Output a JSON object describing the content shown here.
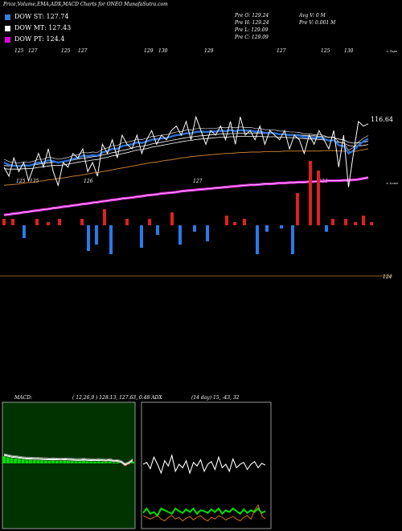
{
  "header": {
    "title": "Price,Volume,EMA,ADX,MACD Charts for ONEO MunafaSutra.com"
  },
  "legend": [
    {
      "label": "DOW ST: 127.74",
      "color": "#3a7bdc"
    },
    {
      "label": "DOW MT: 127.43",
      "color": "#ffffff"
    },
    {
      "label": "DOW PT: 124.4",
      "color": "#e000e0"
    }
  ],
  "info": {
    "open": "Pre  O: 129.24",
    "high": "Pre  H: 129.24",
    "low": "Pre  L: 129.09",
    "close": "Pre  C: 129.09",
    "avg_vol": "Avg V: 0  M",
    "prev_vol": "Pre  V: 0.001 M"
  },
  "labels": {
    "price_right": "116.64",
    "top_right": "< Tops",
    "low_right": "< Lows",
    "volume_right": "124",
    "macd": "MACD:",
    "macd_vals": "( 12,26,9 ) 128.13,  127.63,  0.48 ADX",
    "adx_vals": "(14  day) 15,  -43,  32"
  },
  "top_markers": [
    "125",
    "127",
    "125",
    "127",
    "129",
    "130",
    "129",
    "127",
    "125",
    "130"
  ],
  "low_markers": [
    "125",
    "125",
    "126",
    "127",
    "124"
  ],
  "chart_data": {
    "type": "line",
    "title": "Price,Volume,EMA,ADX,MACD Charts for ONEO",
    "ylim": [
      110,
      140
    ],
    "series": [
      {
        "name": "DOW ST",
        "color": "#3a7bdc"
      },
      {
        "name": "DOW MT",
        "color": "#ffffff"
      },
      {
        "name": "DOW PT",
        "color": "#e000e0"
      }
    ],
    "price": [
      121,
      119,
      123,
      120,
      122,
      118,
      121,
      124,
      121,
      125,
      120,
      117,
      122,
      121,
      124,
      123,
      125,
      120,
      122,
      119,
      126,
      124,
      127,
      123,
      128,
      126,
      125,
      128,
      124,
      127,
      129,
      126,
      128,
      127,
      129,
      130,
      128,
      131,
      127,
      132,
      129,
      126,
      129,
      128,
      130,
      127,
      131,
      126,
      132,
      128,
      129,
      127,
      130,
      126,
      129,
      128,
      127,
      129,
      125,
      128,
      127,
      124,
      128,
      126,
      129,
      127,
      125,
      129,
      121,
      128,
      116.6,
      124,
      131,
      130,
      130.5
    ],
    "ema_short": [
      122,
      121.5,
      121.3,
      121.2,
      121.4,
      121.3,
      121.6,
      122,
      122,
      122.5,
      122.3,
      122,
      122.2,
      122.4,
      122.8,
      123,
      123.5,
      123.4,
      123.6,
      123.5,
      124.2,
      124.5,
      125,
      125,
      125.6,
      125.8,
      126,
      126.4,
      126.3,
      126.6,
      127,
      127.1,
      127.3,
      127.4,
      127.7,
      128,
      128.1,
      128.4,
      128.4,
      128.7,
      128.8,
      128.7,
      128.8,
      128.8,
      129,
      128.9,
      129.1,
      128.9,
      129.1,
      129,
      129,
      128.8,
      128.8,
      128.5,
      128.5,
      128.4,
      128.2,
      128.2,
      128,
      128,
      127.9,
      127.6,
      127.6,
      127.4,
      127.5,
      127.2,
      126.8,
      126.9,
      125.8,
      125.6,
      124,
      124.6,
      125.8,
      126.6,
      127.2
    ],
    "ema_mid": [
      121,
      120.9,
      120.9,
      120.9,
      121,
      121,
      121.1,
      121.3,
      121.4,
      121.6,
      121.7,
      121.7,
      121.8,
      122,
      122.2,
      122.4,
      122.6,
      122.7,
      122.9,
      123,
      123.3,
      123.5,
      123.8,
      124,
      124.3,
      124.5,
      124.8,
      125.1,
      125.2,
      125.4,
      125.7,
      125.9,
      126.1,
      126.3,
      126.5,
      126.7,
      126.9,
      127.1,
      127.2,
      127.4,
      127.5,
      127.6,
      127.7,
      127.8,
      127.9,
      127.9,
      128,
      128,
      128.1,
      128.1,
      128.1,
      128.1,
      128.1,
      128,
      128,
      128,
      127.9,
      127.9,
      127.8,
      127.8,
      127.7,
      127.6,
      127.5,
      127.5,
      127.4,
      127.3,
      127.2,
      127.1,
      126.8,
      126.6,
      126.1,
      125.9,
      126,
      126.1,
      126.3
    ],
    "ema_long": [
      117,
      117.1,
      117.2,
      117.3,
      117.5,
      117.6,
      117.7,
      117.9,
      118,
      118.2,
      118.3,
      118.5,
      118.6,
      118.8,
      119,
      119.1,
      119.3,
      119.5,
      119.7,
      119.8,
      120,
      120.2,
      120.4,
      120.6,
      120.8,
      121,
      121.2,
      121.4,
      121.6,
      121.8,
      122,
      122.1,
      122.3,
      122.5,
      122.6,
      122.8,
      123,
      123.1,
      123.3,
      123.4,
      123.5,
      123.6,
      123.7,
      123.8,
      123.9,
      124,
      124,
      124.1,
      124.2,
      124.2,
      124.3,
      124.3,
      124.3,
      124.4,
      124.4,
      124.4,
      124.4,
      124.5,
      124.5,
      124.5,
      124.5,
      124.5,
      124.5,
      124.5,
      124.5,
      124.6,
      124.6,
      124.6,
      124.5,
      124.5,
      124.4,
      124.4,
      124.6,
      124.8,
      125
    ],
    "ema_pt": [
      110.5,
      110.6,
      110.8,
      110.9,
      111.1,
      111.2,
      111.4,
      111.5,
      111.7,
      111.8,
      112,
      112.1,
      112.3,
      112.4,
      112.6,
      112.7,
      112.9,
      113,
      113.2,
      113.3,
      113.5,
      113.6,
      113.8,
      113.9,
      114.1,
      114.2,
      114.3,
      114.5,
      114.6,
      114.8,
      114.9,
      115,
      115.2,
      115.3,
      115.4,
      115.5,
      115.7,
      115.8,
      115.9,
      116,
      116.1,
      116.2,
      116.3,
      116.4,
      116.5,
      116.6,
      116.7,
      116.8,
      116.9,
      117,
      117.1,
      117.1,
      117.2,
      117.3,
      117.3,
      117.4,
      117.5,
      117.5,
      117.6,
      117.6,
      117.7,
      117.7,
      117.8,
      117.8,
      117.9,
      117.9,
      118,
      118,
      118,
      118.1,
      118.1,
      118.2,
      118.3,
      118.5,
      118.7
    ],
    "volume_bars": [
      {
        "x": 3,
        "v": 2,
        "c": "r"
      },
      {
        "x": 14,
        "v": 2,
        "c": "r"
      },
      {
        "x": 28,
        "v": -4,
        "c": "b"
      },
      {
        "x": 44,
        "v": 2,
        "c": "r"
      },
      {
        "x": 58,
        "v": 1,
        "c": "r"
      },
      {
        "x": 72,
        "v": 2,
        "c": "r"
      },
      {
        "x": 100,
        "v": 2,
        "c": "r"
      },
      {
        "x": 108,
        "v": -8,
        "c": "b"
      },
      {
        "x": 118,
        "v": -6,
        "c": "b"
      },
      {
        "x": 128,
        "v": 5,
        "c": "r"
      },
      {
        "x": 136,
        "v": -9,
        "c": "b"
      },
      {
        "x": 156,
        "v": 2,
        "c": "r"
      },
      {
        "x": 174,
        "v": -7,
        "c": "b"
      },
      {
        "x": 184,
        "v": 2,
        "c": "r"
      },
      {
        "x": 194,
        "v": -3,
        "c": "b"
      },
      {
        "x": 212,
        "v": 4,
        "c": "r"
      },
      {
        "x": 222,
        "v": -6,
        "c": "b"
      },
      {
        "x": 240,
        "v": -2,
        "c": "b"
      },
      {
        "x": 256,
        "v": -5,
        "c": "b"
      },
      {
        "x": 280,
        "v": 3,
        "c": "r"
      },
      {
        "x": 290,
        "v": 1,
        "c": "r"
      },
      {
        "x": 302,
        "v": 2,
        "c": "r"
      },
      {
        "x": 318,
        "v": -9,
        "c": "b"
      },
      {
        "x": 330,
        "v": -2,
        "c": "b"
      },
      {
        "x": 348,
        "v": -1,
        "c": "b"
      },
      {
        "x": 362,
        "v": -9,
        "c": "b"
      },
      {
        "x": 368,
        "v": 10,
        "c": "r"
      },
      {
        "x": 384,
        "v": 20,
        "c": "r"
      },
      {
        "x": 394,
        "v": 17,
        "c": "r"
      },
      {
        "x": 404,
        "v": -2,
        "c": "b"
      },
      {
        "x": 412,
        "v": 2,
        "c": "r"
      },
      {
        "x": 428,
        "v": 2,
        "c": "r"
      },
      {
        "x": 440,
        "v": 1,
        "c": "r"
      },
      {
        "x": 450,
        "v": 3,
        "c": "r"
      },
      {
        "x": 460,
        "v": 1,
        "c": "r"
      }
    ],
    "macd_line": [
      0.4,
      0.35,
      0.3,
      0.28,
      0.25,
      0.22,
      0.2,
      0.2,
      0.18,
      0.18,
      0.17,
      0.16,
      0.15,
      0.16,
      0.15,
      0.14,
      0.15,
      0.14,
      0.13,
      0.12,
      0.12,
      0.13,
      0.12,
      0.11,
      0.1,
      0.12,
      0.1,
      0.08,
      0.12,
      0.05,
      0.06,
      0.0,
      -0.15,
      -0.05,
      0.1
    ],
    "adx_plus": [
      0.7,
      0.72,
      0.65,
      0.78,
      0.7,
      0.6,
      0.74,
      0.68,
      0.8,
      0.62,
      0.7,
      0.66,
      0.74,
      0.6,
      0.72,
      0.68,
      0.75,
      0.62,
      0.7,
      0.73,
      0.64,
      0.78,
      0.66,
      0.7,
      0.62,
      0.76,
      0.66,
      0.7,
      0.72,
      0.64,
      0.7,
      0.73,
      0.66,
      0.71,
      0.69
    ],
    "adx_minus": [
      0.15,
      0.2,
      0.14,
      0.16,
      0.12,
      0.2,
      0.18,
      0.16,
      0.14,
      0.2,
      0.17,
      0.15,
      0.19,
      0.16,
      0.2,
      0.14,
      0.18,
      0.17,
      0.15,
      0.19,
      0.16,
      0.2,
      0.14,
      0.18,
      0.16,
      0.2,
      0.17,
      0.14,
      0.19,
      0.15,
      0.18,
      0.16,
      0.2,
      0.15,
      0.17
    ],
    "adx_line": [
      0.12,
      0.1,
      0.08,
      0.1,
      0.12,
      0.08,
      0.06,
      0.1,
      0.12,
      0.08,
      0.1,
      0.06,
      0.09,
      0.11,
      0.07,
      0.1,
      0.12,
      0.08,
      0.06,
      0.1,
      0.08,
      0.12,
      0.1,
      0.07,
      0.09,
      0.11,
      0.08,
      0.06,
      0.1,
      0.12,
      0.08,
      0.18,
      0.24,
      0.12,
      0.08
    ]
  },
  "colors": {
    "ema_short": "#2a6ed8",
    "ema_long": "#c07a30",
    "pt": "#e030e0",
    "red": "#e02020",
    "blue": "#2a7ae8",
    "green": "#00e000",
    "orange": "#e07a10"
  }
}
